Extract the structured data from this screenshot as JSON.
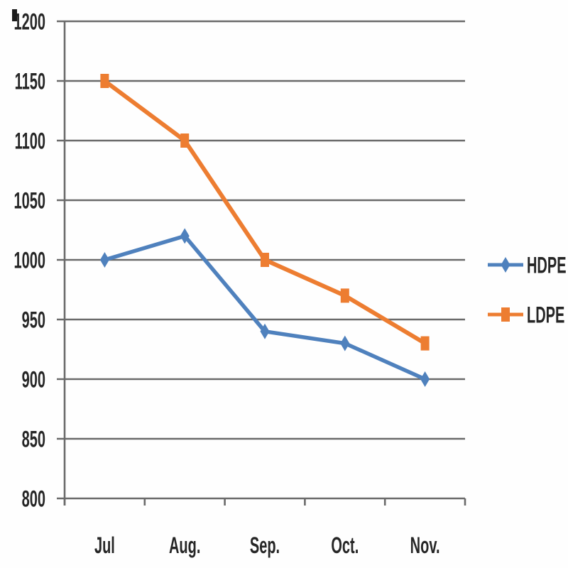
{
  "chart_data": {
    "type": "line",
    "title": "",
    "xlabel": "",
    "ylabel": "",
    "categories": [
      "Jul",
      "Aug.",
      "Sep.",
      "Oct.",
      "Nov."
    ],
    "series": [
      {
        "name": "HDPE",
        "values": [
          1000,
          1020,
          940,
          930,
          900
        ],
        "color": "#4f81bd",
        "marker": "diamond",
        "stroke_width": 5.5
      },
      {
        "name": "LDPE",
        "values": [
          1150,
          1100,
          1000,
          970,
          930
        ],
        "color": "#ed7d31",
        "marker": "square",
        "stroke_width": 6
      }
    ],
    "ylim": [
      800,
      1200
    ],
    "ytick_step": 50,
    "yticks": [
      1200,
      1150,
      1100,
      1050,
      1000,
      950,
      900,
      850,
      800
    ],
    "grid": true,
    "legend_position": "right",
    "legend_entries": [
      "HDPE",
      "LDPE"
    ]
  },
  "colors": {
    "gridline": "#6a6a6a",
    "axis": "#6a6a6a",
    "text": "#262626",
    "background": "#fefefe",
    "hdpe": "#4f81bd",
    "ldpe": "#ed7d31"
  }
}
